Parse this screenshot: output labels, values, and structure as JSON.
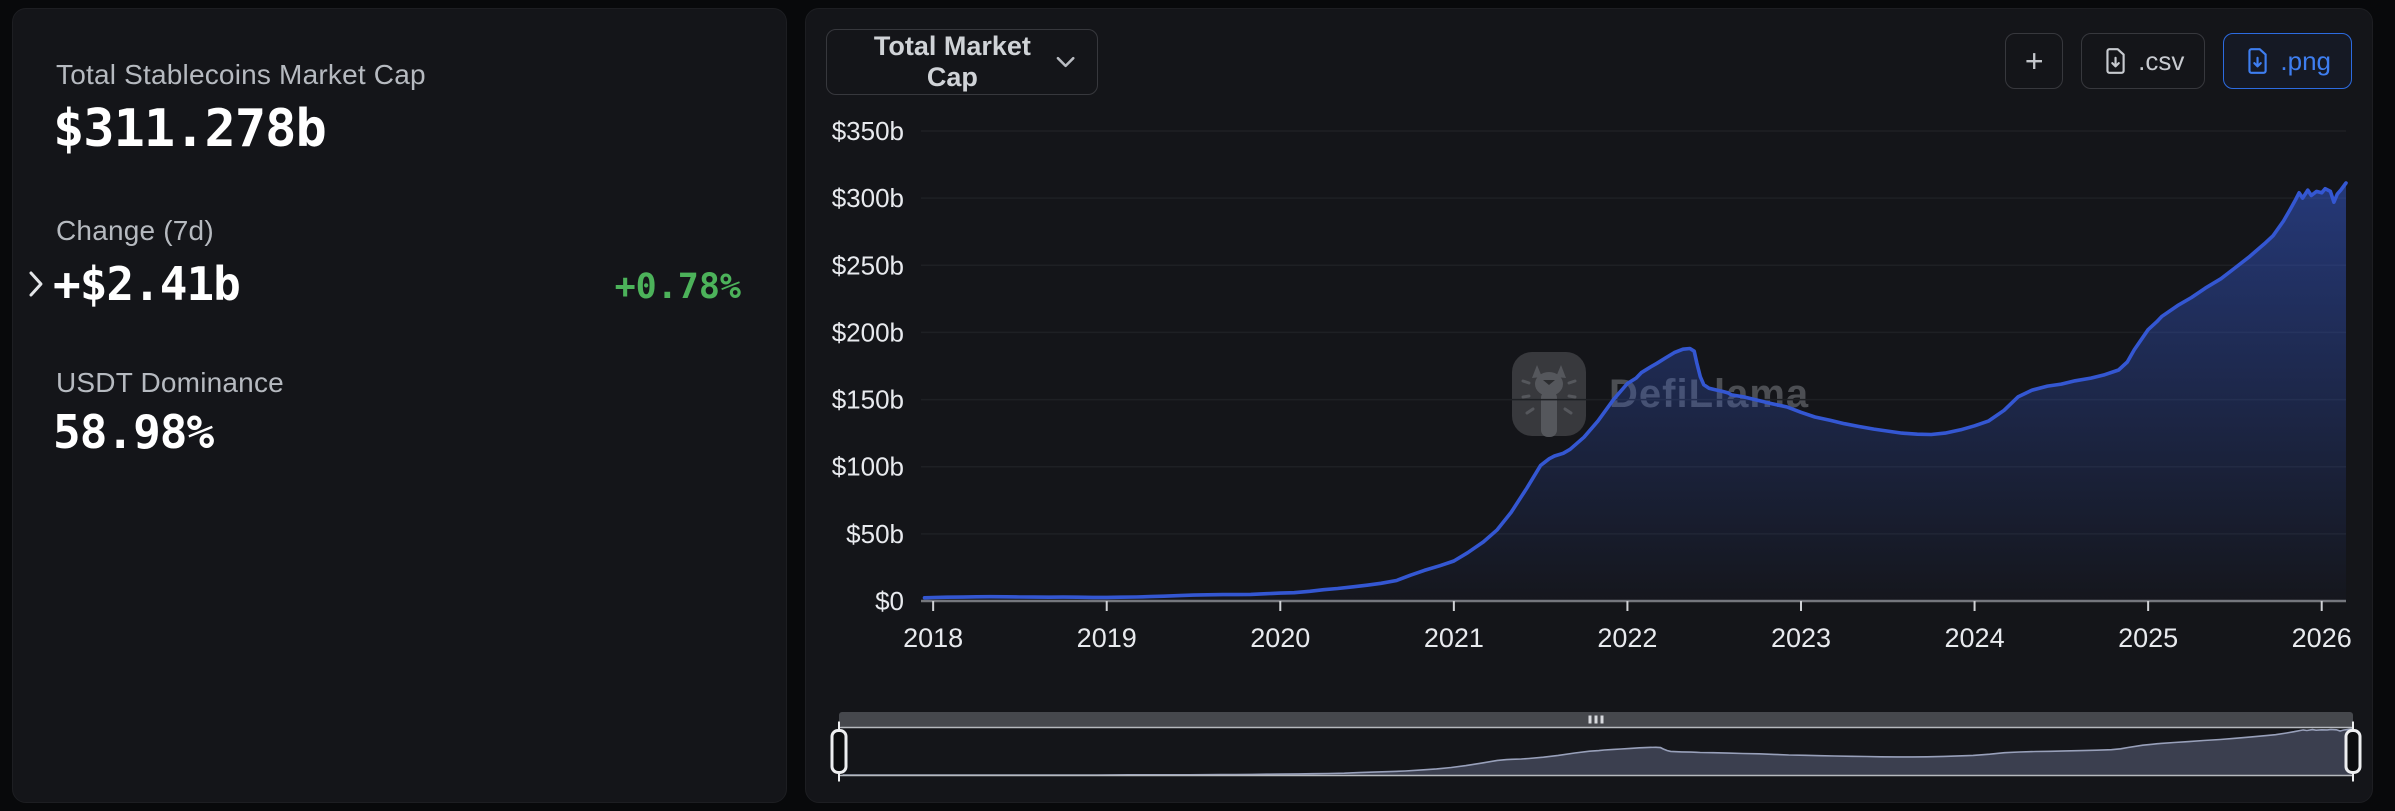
{
  "left_panel": {
    "title": "Total Stablecoins Market Cap",
    "market_cap": "$311.278b",
    "change_label": "Change (7d)",
    "change_value": "+$2.41b",
    "change_percent": "+0.78%",
    "dominance_label": "USDT Dominance",
    "dominance_value": "58.98%"
  },
  "toolbar": {
    "metric_dropdown": "Total Market Cap",
    "add_label": "+",
    "csv_label": ".csv",
    "png_label": ".png"
  },
  "watermark": "DefiLlama",
  "colors": {
    "accent_blue": "#2c6be0",
    "positive_green": "#4cb25a",
    "line": "#3457d2",
    "area_top": "rgba(54,92,214,0.50)",
    "area_bottom": "rgba(54,92,214,0.02)",
    "grid": "#1e2024",
    "axis": "#75777c",
    "tick": "#d0d2d6",
    "tick_text": "#e8eaee",
    "nav_band": "#46484d",
    "nav_grip": "#d7d9dd",
    "nav_border": "#b6b9be",
    "nav_fill": "#3b3f4f",
    "nav_line": "#98a0ba",
    "handle_stroke": "#edeef0",
    "handle_fill": "#0c0d0f"
  },
  "chart_data": {
    "type": "area",
    "title": "Total Market Cap",
    "series_name": "Total Stablecoins Market Cap",
    "units": "$b",
    "xlabel": "",
    "ylabel": "",
    "grid": true,
    "legend": "none",
    "x_domain": [
      2017.93,
      2026.14
    ],
    "ylim": [
      0,
      350
    ],
    "x_ticks": [
      2018,
      2019,
      2020,
      2021,
      2022,
      2023,
      2024,
      2025,
      2026
    ],
    "y_ticks": [
      {
        "value": 0,
        "label": "$0"
      },
      {
        "value": 50,
        "label": "$50b"
      },
      {
        "value": 100,
        "label": "$100b"
      },
      {
        "value": 150,
        "label": "$150b"
      },
      {
        "value": 200,
        "label": "$200b"
      },
      {
        "value": 250,
        "label": "$250b"
      },
      {
        "value": 300,
        "label": "$300b"
      },
      {
        "value": 350,
        "label": "$350b"
      }
    ],
    "points": [
      [
        2017.95,
        2.4
      ],
      [
        2018.0,
        2.6
      ],
      [
        2018.08,
        2.8
      ],
      [
        2018.17,
        2.9
      ],
      [
        2018.25,
        3.1
      ],
      [
        2018.33,
        3.2
      ],
      [
        2018.42,
        3.1
      ],
      [
        2018.5,
        3.0
      ],
      [
        2018.58,
        2.9
      ],
      [
        2018.67,
        2.85
      ],
      [
        2018.75,
        2.9
      ],
      [
        2018.83,
        2.8
      ],
      [
        2018.92,
        2.7
      ],
      [
        2019.0,
        2.7
      ],
      [
        2019.08,
        2.8
      ],
      [
        2019.17,
        3.0
      ],
      [
        2019.25,
        3.3
      ],
      [
        2019.33,
        3.6
      ],
      [
        2019.42,
        4.0
      ],
      [
        2019.5,
        4.4
      ],
      [
        2019.58,
        4.6
      ],
      [
        2019.67,
        4.8
      ],
      [
        2019.75,
        4.8
      ],
      [
        2019.83,
        4.9
      ],
      [
        2019.92,
        5.4
      ],
      [
        2020.0,
        5.9
      ],
      [
        2020.08,
        6.2
      ],
      [
        2020.17,
        7.2
      ],
      [
        2020.25,
        8.4
      ],
      [
        2020.33,
        9.3
      ],
      [
        2020.42,
        10.6
      ],
      [
        2020.5,
        11.8
      ],
      [
        2020.58,
        13.2
      ],
      [
        2020.67,
        15.3
      ],
      [
        2020.75,
        19.2
      ],
      [
        2020.83,
        22.8
      ],
      [
        2020.92,
        26.3
      ],
      [
        2021.0,
        29.8
      ],
      [
        2021.08,
        36
      ],
      [
        2021.17,
        44
      ],
      [
        2021.25,
        53
      ],
      [
        2021.33,
        66
      ],
      [
        2021.42,
        84
      ],
      [
        2021.5,
        101
      ],
      [
        2021.55,
        106
      ],
      [
        2021.58,
        108
      ],
      [
        2021.63,
        110
      ],
      [
        2021.67,
        113
      ],
      [
        2021.75,
        122
      ],
      [
        2021.83,
        134
      ],
      [
        2021.92,
        150
      ],
      [
        2022.0,
        162
      ],
      [
        2022.05,
        166
      ],
      [
        2022.08,
        170
      ],
      [
        2022.13,
        174
      ],
      [
        2022.17,
        177
      ],
      [
        2022.22,
        181
      ],
      [
        2022.27,
        185
      ],
      [
        2022.32,
        187.5
      ],
      [
        2022.36,
        188
      ],
      [
        2022.385,
        186
      ],
      [
        2022.4,
        177
      ],
      [
        2022.42,
        167
      ],
      [
        2022.44,
        161
      ],
      [
        2022.47,
        158.5
      ],
      [
        2022.5,
        157.5
      ],
      [
        2022.55,
        156
      ],
      [
        2022.58,
        155
      ],
      [
        2022.6,
        153.5
      ],
      [
        2022.67,
        152
      ],
      [
        2022.75,
        149.5
      ],
      [
        2022.83,
        147
      ],
      [
        2022.92,
        144.5
      ],
      [
        2023.0,
        140.5
      ],
      [
        2023.08,
        137
      ],
      [
        2023.17,
        134.5
      ],
      [
        2023.25,
        132
      ],
      [
        2023.33,
        130
      ],
      [
        2023.42,
        128
      ],
      [
        2023.5,
        126.5
      ],
      [
        2023.58,
        125
      ],
      [
        2023.67,
        124.2
      ],
      [
        2023.75,
        124
      ],
      [
        2023.83,
        125
      ],
      [
        2023.92,
        127.5
      ],
      [
        2024.0,
        130.5
      ],
      [
        2024.08,
        134
      ],
      [
        2024.17,
        142
      ],
      [
        2024.25,
        152
      ],
      [
        2024.33,
        157
      ],
      [
        2024.42,
        160
      ],
      [
        2024.5,
        161.5
      ],
      [
        2024.58,
        164
      ],
      [
        2024.67,
        166
      ],
      [
        2024.75,
        168.5
      ],
      [
        2024.83,
        172
      ],
      [
        2024.88,
        178
      ],
      [
        2024.92,
        187
      ],
      [
        2025.0,
        202
      ],
      [
        2025.05,
        208
      ],
      [
        2025.08,
        212
      ],
      [
        2025.17,
        220
      ],
      [
        2025.25,
        226
      ],
      [
        2025.33,
        233
      ],
      [
        2025.42,
        240
      ],
      [
        2025.5,
        248
      ],
      [
        2025.58,
        256
      ],
      [
        2025.67,
        266
      ],
      [
        2025.72,
        272
      ],
      [
        2025.78,
        283
      ],
      [
        2025.82,
        292
      ],
      [
        2025.85,
        299
      ],
      [
        2025.87,
        304
      ],
      [
        2025.89,
        300
      ],
      [
        2025.92,
        306
      ],
      [
        2025.94,
        302
      ],
      [
        2025.97,
        305
      ],
      [
        2026.0,
        304
      ],
      [
        2026.02,
        307
      ],
      [
        2026.05,
        305
      ],
      [
        2026.07,
        297
      ],
      [
        2026.09,
        303
      ],
      [
        2026.11,
        306
      ],
      [
        2026.14,
        311.3
      ]
    ],
    "navigator": {
      "visible": true,
      "selected_range": "full",
      "v_max": 320
    }
  }
}
